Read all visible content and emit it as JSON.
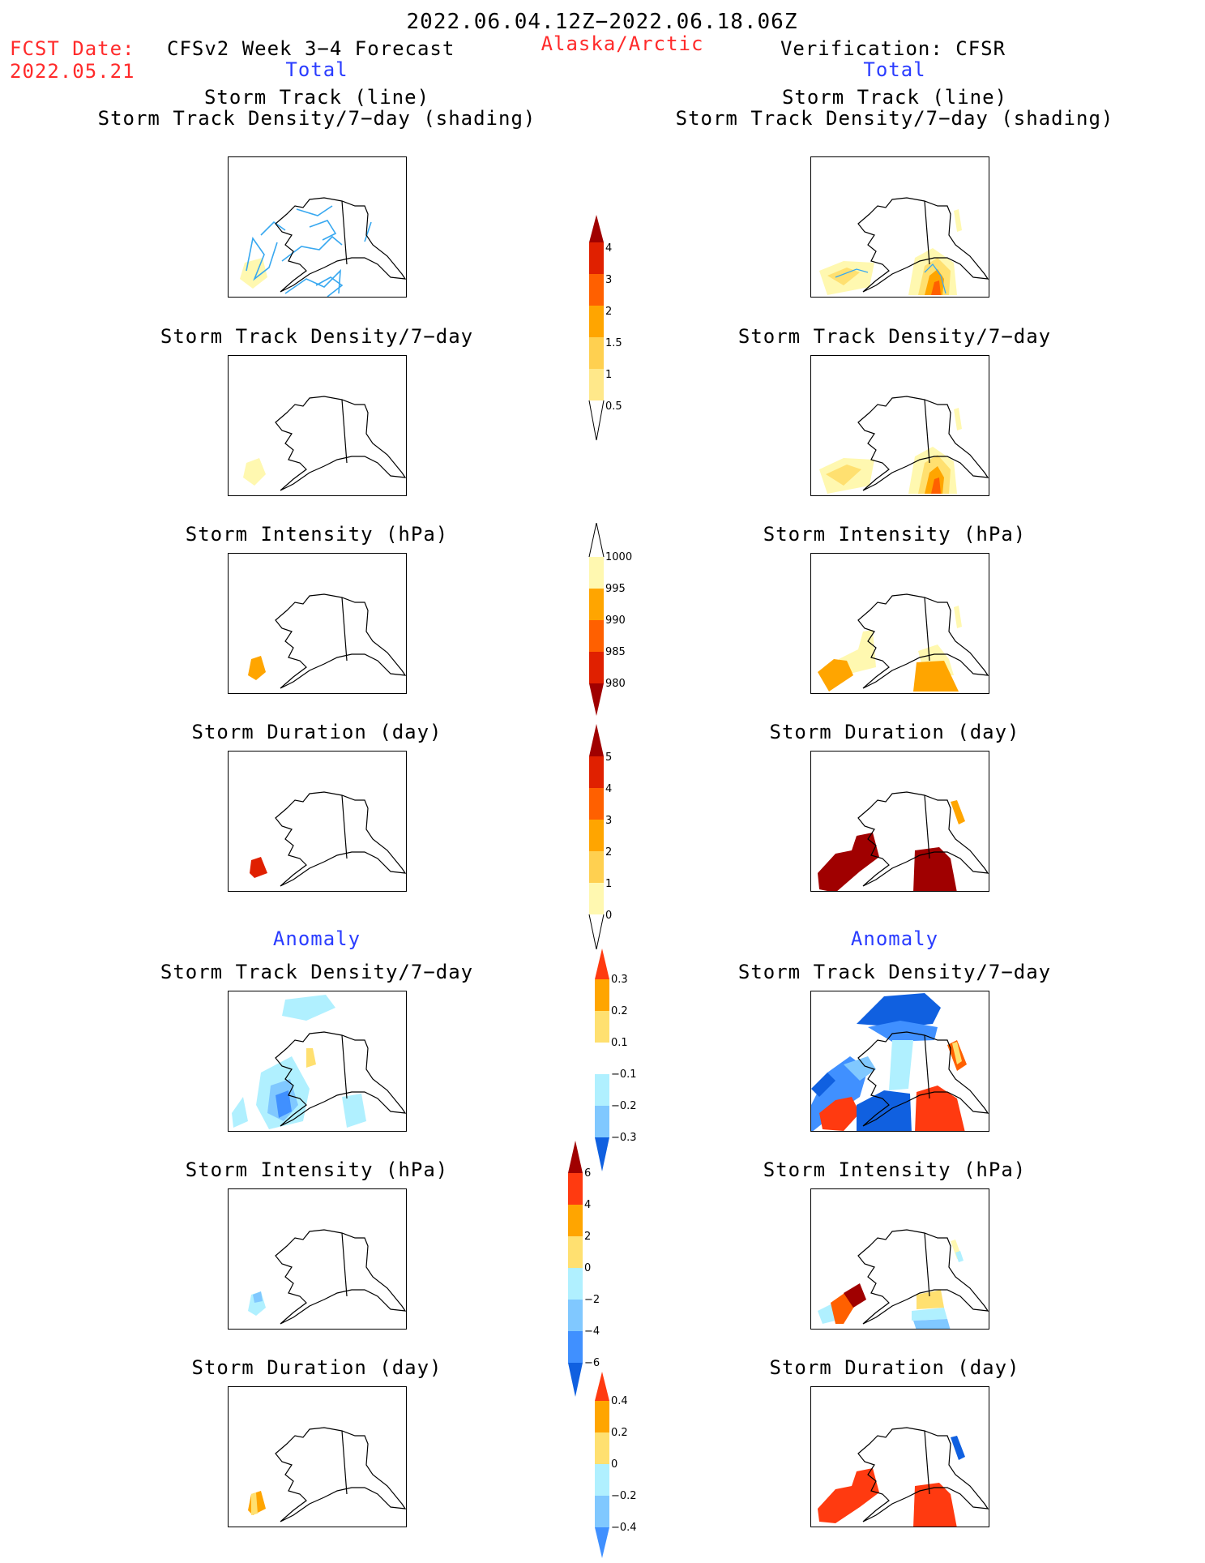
{
  "header": {
    "period": "2022.06.04.12Z−2022.06.18.06Z",
    "fcst_label": "FCST Date:",
    "fcst_date": "2022.05.21",
    "model": "CFSv2 Week 3−4 Forecast",
    "region": "Alaska/Arctic",
    "verification": "Verification: CFSR",
    "left_total": "Total",
    "right_total": "Total",
    "left_anomaly": "Anomaly",
    "right_anomaly": "Anomaly"
  },
  "panels": {
    "track_line": "Storm Track (line)",
    "track_shading": "Storm Track Density/7−day (shading)",
    "density": "Storm Track Density/7−day",
    "intensity": "Storm Intensity (hPa)",
    "duration": "Storm Duration (day)"
  },
  "colorbars": {
    "density_total": {
      "labels": [
        "4",
        "3",
        "2",
        "1.5",
        "1",
        "0.5"
      ]
    },
    "intensity_total": {
      "labels": [
        "1000",
        "995",
        "990",
        "985",
        "980"
      ]
    },
    "duration_total": {
      "labels": [
        "5",
        "4",
        "3",
        "2",
        "1",
        "0"
      ]
    },
    "density_anom": {
      "labels": [
        "0.3",
        "0.2",
        "0.1",
        "−0.1",
        "−0.2",
        "−0.3"
      ]
    },
    "intensity_anom": {
      "labels": [
        "6",
        "4",
        "2",
        "0",
        "−2",
        "−4",
        "−6"
      ]
    },
    "duration_anom": {
      "labels": [
        "0.4",
        "0.2",
        "0",
        "−0.2",
        "−0.4"
      ]
    }
  },
  "colors": {
    "warm": [
      "#fff8b0",
      "#ffe070",
      "#ffa500",
      "#ff6000",
      "#e02000",
      "#a00000"
    ],
    "cool": [
      "#b0f0ff",
      "#80c8ff",
      "#4090ff",
      "#1060e0"
    ],
    "track_line": "#38a8f0",
    "title_red": "#ff2a2a",
    "title_blue": "#2a3cff"
  }
}
